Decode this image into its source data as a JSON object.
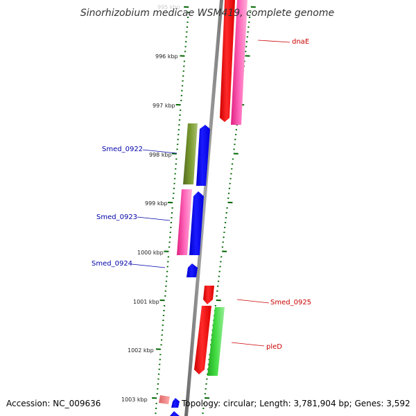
{
  "title": "Sinorhizobium medicae WSM419, complete genome",
  "footer": {
    "accession": "Accession: NC_009636",
    "topology": "Topology: circular; Length: 3,781,904 bp; Genes: 3,592"
  },
  "ruler": {
    "labels": [
      "995 kbp",
      "996 kbp",
      "997 kbp",
      "998 kbp",
      "999 kbp",
      "1000 kbp",
      "1001 kbp",
      "1002 kbp",
      "1003 kbp"
    ]
  },
  "gene_labels": {
    "left": [
      "Smed_0922",
      "Smed_0923",
      "Smed_0924"
    ],
    "right": [
      "dnaE",
      "Smed_0925",
      "pleD"
    ]
  },
  "colors": {
    "backbone": "#888888",
    "ruler_ticks": "#006600",
    "left_label": "#0000aa",
    "right_label": "#cc0000",
    "red": "#ff0000",
    "pink": "#ff44aa",
    "blue": "#0000ff",
    "olive": "#6b8e23",
    "green": "#33cc33",
    "light_red": "#ff8888"
  }
}
